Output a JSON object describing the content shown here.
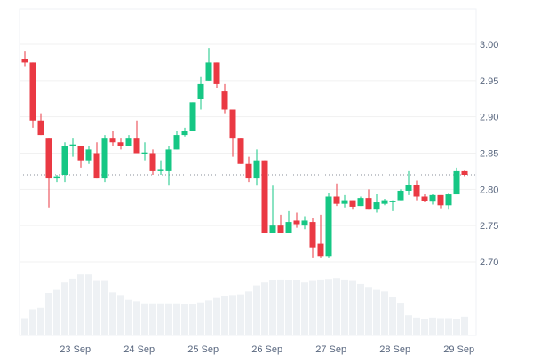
{
  "chart_data": {
    "type": "candlestick",
    "title": "",
    "xlabel": "",
    "ylabel": "",
    "ylim": [
      2.66,
      3.05
    ],
    "y_ticks": [
      "3.00",
      "2.95",
      "2.90",
      "2.85",
      "2.80",
      "2.75",
      "2.70"
    ],
    "y_tick_values": [
      3.0,
      2.95,
      2.9,
      2.85,
      2.8,
      2.75,
      2.7
    ],
    "x_ticks": [
      {
        "label": "23 Sep",
        "index": 6.3
      },
      {
        "label": "24 Sep",
        "index": 14.3
      },
      {
        "label": "25 Sep",
        "index": 22.3
      },
      {
        "label": "26 Sep",
        "index": 30.3
      },
      {
        "label": "27 Sep",
        "index": 38.3
      },
      {
        "label": "28 Sep",
        "index": 46.3
      },
      {
        "label": "29 Sep",
        "index": 54.3
      }
    ],
    "current_price": 2.82,
    "grid": true,
    "colors": {
      "up": "#16c784",
      "down": "#ea3943",
      "volume": "#eef1f4",
      "grid": "#f1f1f1",
      "axis_text": "#58667e"
    },
    "ohlc": [
      [
        2.98,
        2.99,
        2.97,
        2.975
      ],
      [
        2.975,
        2.975,
        2.885,
        2.895
      ],
      [
        2.895,
        2.905,
        2.875,
        2.875
      ],
      [
        2.87,
        2.87,
        2.775,
        2.815
      ],
      [
        2.815,
        2.82,
        2.81,
        2.818
      ],
      [
        2.82,
        2.865,
        2.81,
        2.86
      ],
      [
        2.86,
        2.87,
        2.845,
        2.862
      ],
      [
        2.86,
        2.86,
        2.83,
        2.84
      ],
      [
        2.84,
        2.86,
        2.835,
        2.855
      ],
      [
        2.85,
        2.865,
        2.815,
        2.815
      ],
      [
        2.815,
        2.875,
        2.81,
        2.87
      ],
      [
        2.87,
        2.88,
        2.86,
        2.865
      ],
      [
        2.865,
        2.87,
        2.855,
        2.86
      ],
      [
        2.86,
        2.875,
        2.86,
        2.87
      ],
      [
        2.87,
        2.895,
        2.85,
        2.85
      ],
      [
        2.849,
        2.865,
        2.84,
        2.851
      ],
      [
        2.85,
        2.855,
        2.82,
        2.825
      ],
      [
        2.825,
        2.84,
        2.82,
        2.828
      ],
      [
        2.825,
        2.86,
        2.805,
        2.855
      ],
      [
        2.855,
        2.88,
        2.855,
        2.875
      ],
      [
        2.875,
        2.885,
        2.873,
        2.88
      ],
      [
        2.88,
        2.92,
        2.88,
        2.92
      ],
      [
        2.925,
        2.955,
        2.91,
        2.945
      ],
      [
        2.95,
        2.995,
        2.95,
        2.975
      ],
      [
        2.975,
        2.975,
        2.94,
        2.945
      ],
      [
        2.935,
        2.945,
        2.905,
        2.91
      ],
      [
        2.91,
        2.91,
        2.845,
        2.87
      ],
      [
        2.87,
        2.87,
        2.835,
        2.835
      ],
      [
        2.835,
        2.845,
        2.81,
        2.815
      ],
      [
        2.815,
        2.855,
        2.805,
        2.84
      ],
      [
        2.84,
        2.84,
        2.74,
        2.74
      ],
      [
        2.74,
        2.805,
        2.74,
        2.75
      ],
      [
        2.75,
        2.765,
        2.74,
        2.74
      ],
      [
        2.74,
        2.77,
        2.74,
        2.755
      ],
      [
        2.757,
        2.768,
        2.747,
        2.752
      ],
      [
        2.75,
        2.763,
        2.745,
        2.757
      ],
      [
        2.755,
        2.76,
        2.705,
        2.72
      ],
      [
        2.725,
        2.765,
        2.705,
        2.707
      ],
      [
        2.707,
        2.795,
        2.705,
        2.79
      ],
      [
        2.79,
        2.808,
        2.777,
        2.78
      ],
      [
        2.78,
        2.792,
        2.775,
        2.785
      ],
      [
        2.785,
        2.785,
        2.772,
        2.776
      ],
      [
        2.777,
        2.79,
        2.777,
        2.788
      ],
      [
        2.788,
        2.8,
        2.772,
        2.772
      ],
      [
        2.772,
        2.793,
        2.768,
        2.782
      ],
      [
        2.78,
        2.787,
        2.778,
        2.785
      ],
      [
        2.783,
        2.785,
        2.77,
        2.784
      ],
      [
        2.785,
        2.8,
        2.785,
        2.798
      ],
      [
        2.798,
        2.825,
        2.792,
        2.806
      ],
      [
        2.806,
        2.812,
        2.785,
        2.79
      ],
      [
        2.79,
        2.793,
        2.782,
        2.784
      ],
      [
        2.783,
        2.793,
        2.779,
        2.792
      ],
      [
        2.792,
        2.792,
        2.774,
        2.778
      ],
      [
        2.778,
        2.794,
        2.772,
        2.793
      ],
      [
        2.793,
        2.83,
        2.793,
        2.825
      ],
      [
        2.825,
        2.826,
        2.818,
        2.82
      ]
    ],
    "volume_ylim": [
      0,
      230
    ],
    "volume": [
      58,
      88,
      93,
      143,
      153,
      178,
      191,
      205,
      205,
      183,
      183,
      145,
      136,
      120,
      115,
      108,
      108,
      108,
      108,
      108,
      106,
      106,
      111,
      118,
      126,
      133,
      136,
      138,
      148,
      168,
      178,
      186,
      188,
      186,
      186,
      178,
      183,
      188,
      190,
      193,
      188,
      183,
      173,
      163,
      153,
      148,
      128,
      110,
      68,
      60,
      56,
      60,
      58,
      58,
      56,
      63
    ]
  }
}
